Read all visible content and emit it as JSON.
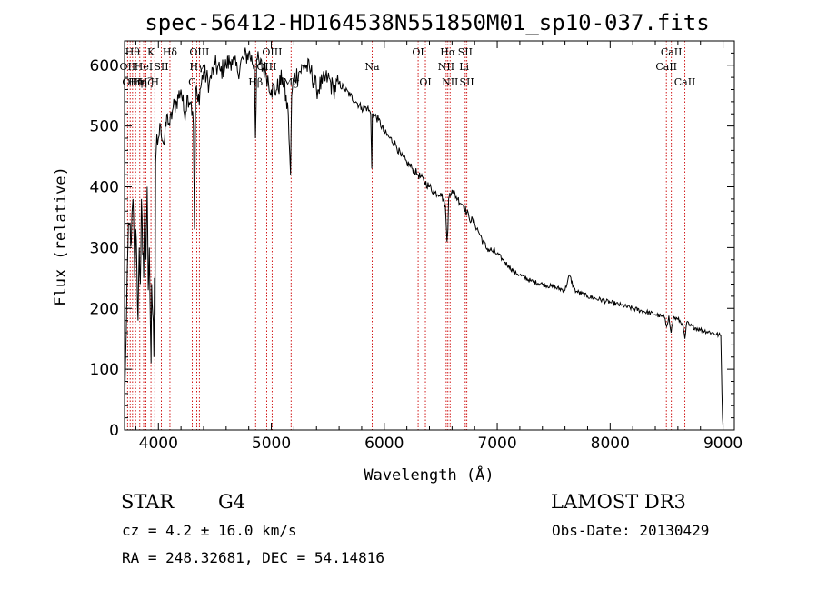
{
  "chart_data": {
    "type": "line",
    "title": "spec-56412-HD164538N551850M01_sp10-037.fits",
    "xlabel": "Wavelength (Å)",
    "ylabel": "Flux (relative)",
    "xlim": [
      3700,
      9100
    ],
    "ylim": [
      0,
      640
    ],
    "xticks": [
      4000,
      5000,
      6000,
      7000,
      8000,
      9000
    ],
    "yticks": [
      0,
      100,
      200,
      300,
      400,
      500,
      600
    ],
    "series": [
      {
        "name": "flux",
        "x": [
          3700,
          3710,
          3720,
          3730,
          3745,
          3760,
          3775,
          3790,
          3800,
          3810,
          3820,
          3830,
          3840,
          3850,
          3860,
          3870,
          3880,
          3890,
          3900,
          3910,
          3920,
          3930,
          3935,
          3940,
          3950,
          3960,
          3965,
          3970,
          3975,
          3980,
          4000,
          4020,
          4050,
          4080,
          4100,
          4130,
          4160,
          4200,
          4230,
          4260,
          4290,
          4310,
          4320,
          4330,
          4350,
          4400,
          4450,
          4500,
          4550,
          4600,
          4650,
          4700,
          4750,
          4800,
          4850,
          4860,
          4870,
          4900,
          4950,
          5000,
          5050,
          5100,
          5150,
          5170,
          5180,
          5200,
          5250,
          5300,
          5350,
          5400,
          5450,
          5500,
          5550,
          5600,
          5650,
          5700,
          5750,
          5800,
          5850,
          5880,
          5890,
          5895,
          5900,
          5950,
          6000,
          6050,
          6100,
          6150,
          6200,
          6250,
          6300,
          6350,
          6400,
          6450,
          6500,
          6540,
          6555,
          6563,
          6570,
          6580,
          6600,
          6650,
          6700,
          6750,
          6800,
          6850,
          6900,
          6950,
          7000,
          7050,
          7100,
          7150,
          7200,
          7300,
          7400,
          7500,
          7600,
          7640,
          7680,
          7700,
          7800,
          7900,
          8000,
          8100,
          8200,
          8300,
          8400,
          8480,
          8500,
          8520,
          8540,
          8560,
          8600,
          8640,
          8662,
          8680,
          8700,
          8800,
          8900,
          8980,
          8995,
          9000
        ],
        "values": [
          20,
          120,
          220,
          300,
          340,
          310,
          380,
          250,
          330,
          260,
          180,
          300,
          240,
          380,
          290,
          250,
          370,
          280,
          400,
          230,
          300,
          160,
          110,
          240,
          190,
          120,
          250,
          190,
          440,
          460,
          480,
          500,
          470,
          520,
          500,
          530,
          540,
          560,
          520,
          550,
          540,
          500,
          330,
          560,
          540,
          590,
          570,
          600,
          590,
          600,
          610,
          590,
          610,
          620,
          600,
          480,
          610,
          600,
          590,
          560,
          560,
          580,
          520,
          420,
          550,
          580,
          590,
          600,
          590,
          560,
          570,
          580,
          560,
          570,
          560,
          550,
          540,
          530,
          530,
          520,
          430,
          520,
          520,
          510,
          490,
          480,
          470,
          450,
          440,
          430,
          420,
          410,
          400,
          390,
          390,
          370,
          310,
          330,
          380,
          390,
          395,
          380,
          370,
          350,
          340,
          320,
          300,
          295,
          290,
          280,
          270,
          260,
          255,
          245,
          240,
          235,
          230,
          255,
          232,
          228,
          220,
          215,
          210,
          205,
          200,
          195,
          190,
          185,
          170,
          188,
          160,
          185,
          182,
          175,
          150,
          178,
          172,
          165,
          160,
          155,
          20,
          5
        ]
      }
    ],
    "lines": [
      {
        "x": 3727,
        "label": "OII",
        "row": 2
      },
      {
        "x": 3750,
        "label": "OII",
        "row": 3
      },
      {
        "x": 3771,
        "label": "Hθ",
        "row": 1
      },
      {
        "x": 3798,
        "label": "Hη",
        "row": 3
      },
      {
        "x": 3835,
        "label": "Hη",
        "row": 3
      },
      {
        "x": 3869,
        "label": "HeI",
        "row": 2
      },
      {
        "x": 3889,
        "label": "Hζ",
        "row": 3
      },
      {
        "x": 3934,
        "label": "K",
        "row": 1
      },
      {
        "x": 3968,
        "label": "H",
        "row": 3
      },
      {
        "x": 4026,
        "label": "SII",
        "row": 2
      },
      {
        "x": 4102,
        "label": "Hδ",
        "row": 1
      },
      {
        "x": 4300,
        "label": "G",
        "row": 3
      },
      {
        "x": 4340,
        "label": "Hγ",
        "row": 2
      },
      {
        "x": 4363,
        "label": "OIII",
        "row": 1
      },
      {
        "x": 4861,
        "label": "Hβ",
        "row": 3
      },
      {
        "x": 4959,
        "label": "OIII",
        "row": 2
      },
      {
        "x": 5007,
        "label": "OIII",
        "row": 1
      },
      {
        "x": 5175,
        "label": "Mg",
        "row": 3
      },
      {
        "x": 5893,
        "label": "Na",
        "row": 2
      },
      {
        "x": 6300,
        "label": "OI",
        "row": 1
      },
      {
        "x": 6364,
        "label": "OI",
        "row": 3
      },
      {
        "x": 6548,
        "label": "NII",
        "row": 2
      },
      {
        "x": 6563,
        "label": "Hα",
        "row": 1
      },
      {
        "x": 6583,
        "label": "NII",
        "row": 3
      },
      {
        "x": 6707,
        "label": "Li",
        "row": 2
      },
      {
        "x": 6717,
        "label": "SII",
        "row": 1
      },
      {
        "x": 6731,
        "label": "SII",
        "row": 3
      },
      {
        "x": 8498,
        "label": "CaII",
        "row": 2
      },
      {
        "x": 8542,
        "label": "CaII",
        "row": 1
      },
      {
        "x": 8662,
        "label": "CaII",
        "row": 3
      }
    ]
  },
  "info": {
    "class": "STAR",
    "subclass": "G4",
    "survey": "LAMOST DR3",
    "cz": "cz = 4.2 ± 16.0 km/s",
    "obsdate": "Obs-Date: 20130429",
    "radec": "RA = 248.32681, DEC =  54.14816"
  },
  "colors": {
    "line_marker": "#cc0000",
    "spectrum": "#000000"
  }
}
